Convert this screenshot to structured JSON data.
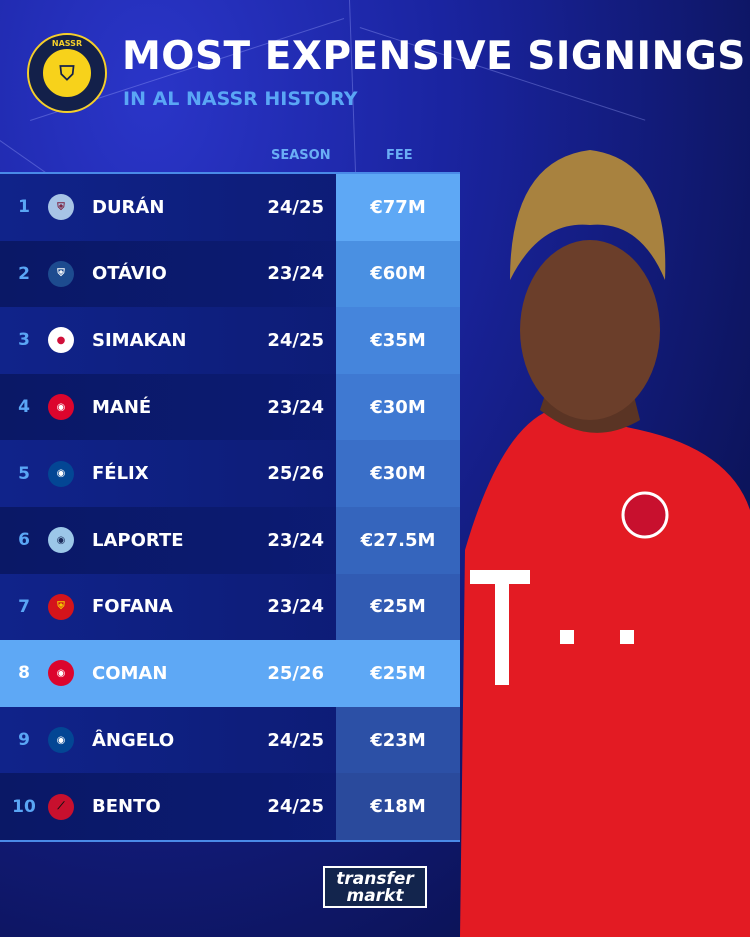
{
  "header": {
    "title": "MOST EXPENSIVE SIGNINGS",
    "subtitle": "IN AL NASSR HISTORY",
    "logo_text": "NASSR RIYADH 1955"
  },
  "columns": {
    "season": "SEASON",
    "fee": "FEE"
  },
  "rows": [
    {
      "rank": "1",
      "club_icon": "aston-villa-crest",
      "player": "DURÁN",
      "season": "24/25",
      "fee": "€77M",
      "fee_color": "#5ea8f5"
    },
    {
      "rank": "2",
      "club_icon": "porto-crest",
      "player": "OTÁVIO",
      "season": "23/24",
      "fee": "€60M",
      "fee_color": "#4a90e2"
    },
    {
      "rank": "3",
      "club_icon": "rb-leipzig-crest",
      "player": "SIMAKAN",
      "season": "24/25",
      "fee": "€35M",
      "fee_color": "#4585dc"
    },
    {
      "rank": "4",
      "club_icon": "bayern-crest",
      "player": "MANÉ",
      "season": "23/24",
      "fee": "€30M",
      "fee_color": "#3f79d2"
    },
    {
      "rank": "5",
      "club_icon": "chelsea-crest",
      "player": "FÉLIX",
      "season": "25/26",
      "fee": "€30M",
      "fee_color": "#3a6fc8"
    },
    {
      "rank": "6",
      "club_icon": "man-city-crest",
      "player": "LAPORTE",
      "season": "23/24",
      "fee": "€27.5M",
      "fee_color": "#3565bd"
    },
    {
      "rank": "7",
      "club_icon": "lens-crest",
      "player": "FOFANA",
      "season": "23/24",
      "fee": "€25M",
      "fee_color": "#315bb3"
    },
    {
      "rank": "8",
      "club_icon": "bayern-crest",
      "player": "COMAN",
      "season": "25/26",
      "fee": "€25M",
      "fee_color": "#5ea8f5",
      "highlighted": true
    },
    {
      "rank": "9",
      "club_icon": "chelsea-crest",
      "player": "ÂNGELO",
      "season": "24/25",
      "fee": "€23M",
      "fee_color": "#2c50a6"
    },
    {
      "rank": "10",
      "club_icon": "athletico-paranaense-crest",
      "player": "BENTO",
      "season": "24/25",
      "fee": "€18M",
      "fee_color": "#2a4a9c"
    }
  ],
  "footer": {
    "brand_line1": "transfer",
    "brand_line2": "markt"
  }
}
